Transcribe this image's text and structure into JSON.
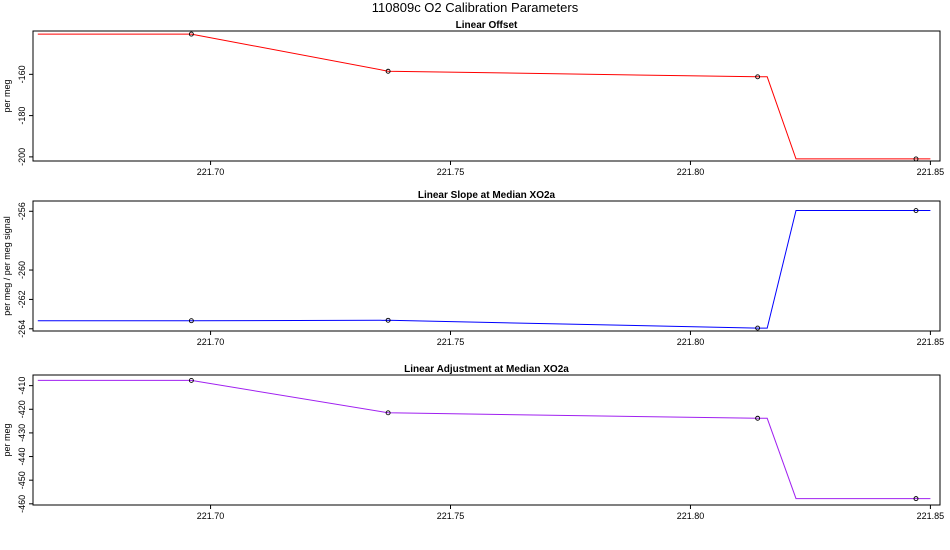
{
  "figure": {
    "title": "110809c   O2 Calibration Parameters"
  },
  "chart_data": [
    {
      "type": "line",
      "title": "Linear Offset",
      "xlabel": "",
      "ylabel": "per meg",
      "color": "#ff0000",
      "xlim": [
        221.663,
        221.852
      ],
      "ylim": [
        -202,
        -139
      ],
      "xticks": [
        "221.70",
        "221.75",
        "221.80",
        "221.85"
      ],
      "yticks": [
        "-160",
        "-180",
        "-200"
      ],
      "step_x": [
        221.664,
        221.696,
        221.737,
        221.814,
        221.816,
        221.822,
        221.847,
        221.85
      ],
      "step_y": [
        -140.5,
        -140.5,
        -158.5,
        -161.2,
        -161.2,
        -201.0,
        -201.0,
        -201.0
      ],
      "points_x": [
        221.696,
        221.737,
        221.814,
        221.847
      ],
      "points_y": [
        -140.5,
        -158.5,
        -161.2,
        -201.0
      ]
    },
    {
      "type": "line",
      "title": "Linear Slope at Median XO2a",
      "xlabel": "",
      "ylabel": "per meg / per meg signal",
      "color": "#0000ff",
      "xlim": [
        221.663,
        221.852
      ],
      "ylim": [
        -264.15,
        -255.3
      ],
      "xticks": [
        "221.70",
        "221.75",
        "221.80",
        "221.85"
      ],
      "yticks": [
        "-256",
        "-260",
        "-262",
        "-264"
      ],
      "step_x": [
        221.664,
        221.696,
        221.737,
        221.814,
        221.816,
        221.822,
        221.847,
        221.85
      ],
      "step_y": [
        -263.45,
        -263.45,
        -263.42,
        -263.95,
        -263.95,
        -255.95,
        -255.95,
        -255.95
      ],
      "points_x": [
        221.696,
        221.737,
        221.814,
        221.847
      ],
      "points_y": [
        -263.45,
        -263.42,
        -263.95,
        -255.95
      ]
    },
    {
      "type": "line",
      "title": "Linear Adjustment at Median XO2a",
      "xlabel": "",
      "ylabel": "per meg",
      "color": "#a020f0",
      "xlim": [
        221.663,
        221.852
      ],
      "ylim": [
        -460.5,
        -405.5
      ],
      "xticks": [
        "221.70",
        "221.75",
        "221.80",
        "221.85"
      ],
      "yticks": [
        "-410",
        "-420",
        "-430",
        "-440",
        "-450",
        "-460"
      ],
      "step_x": [
        221.664,
        221.696,
        221.737,
        221.814,
        221.816,
        221.822,
        221.847,
        221.85
      ],
      "step_y": [
        -407.8,
        -407.8,
        -421.5,
        -423.8,
        -423.8,
        -457.8,
        -457.8,
        -457.8
      ],
      "points_x": [
        221.696,
        221.737,
        221.814,
        221.847
      ],
      "points_y": [
        -407.8,
        -421.5,
        -423.8,
        -457.8
      ]
    }
  ]
}
